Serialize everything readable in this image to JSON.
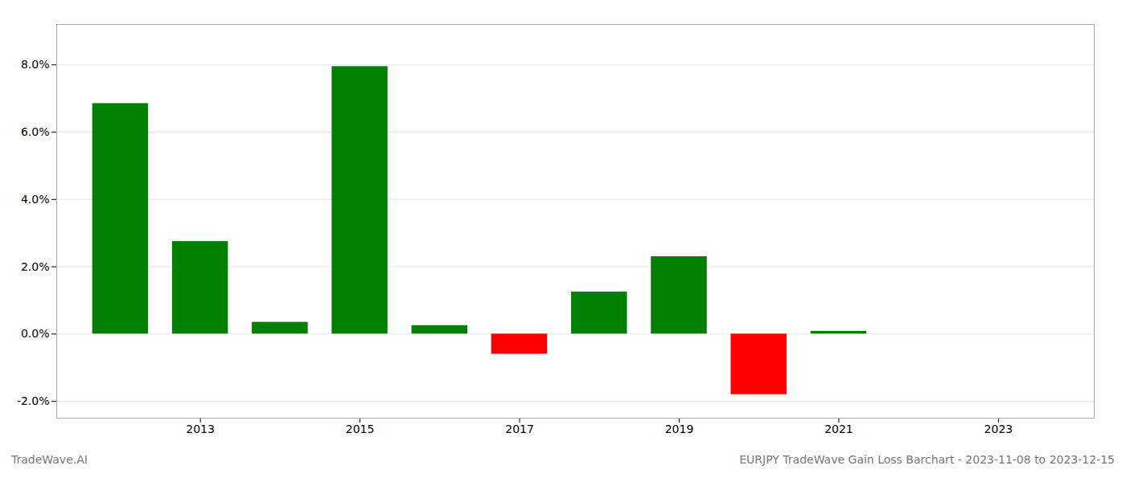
{
  "chart_data": {
    "type": "bar",
    "title": "EURJPY TradeWave Gain Loss Barchart - 2023-11-08 to 2023-12-15",
    "annotations": [
      "TradeWave.AI"
    ],
    "x": [
      2012,
      2013,
      2014,
      2015,
      2016,
      2017,
      2018,
      2019,
      2020,
      2021,
      2022
    ],
    "values": [
      0.0685,
      0.0275,
      0.0035,
      0.0795,
      0.0025,
      -0.006,
      0.0125,
      0.023,
      -0.018,
      0.0008,
      0.0
    ],
    "colors": [
      "#008000",
      "#008000",
      "#008000",
      "#008000",
      "#008000",
      "#ff0000",
      "#008000",
      "#008000",
      "#ff0000",
      "#008000",
      "#008000"
    ],
    "xlim": [
      2011.2,
      2024.2
    ],
    "xticks": [
      2013,
      2015,
      2017,
      2019,
      2021,
      2023
    ],
    "ylim": [
      -0.025,
      0.092
    ],
    "yticks": [
      {
        "value": -0.02,
        "label": "-2.0%"
      },
      {
        "value": 0.0,
        "label": "0.0%"
      },
      {
        "value": 0.02,
        "label": "2.0%"
      },
      {
        "value": 0.04,
        "label": "4.0%"
      },
      {
        "value": 0.06,
        "label": "6.0%"
      },
      {
        "value": 0.08,
        "label": "8.0%"
      }
    ],
    "grid": true
  }
}
